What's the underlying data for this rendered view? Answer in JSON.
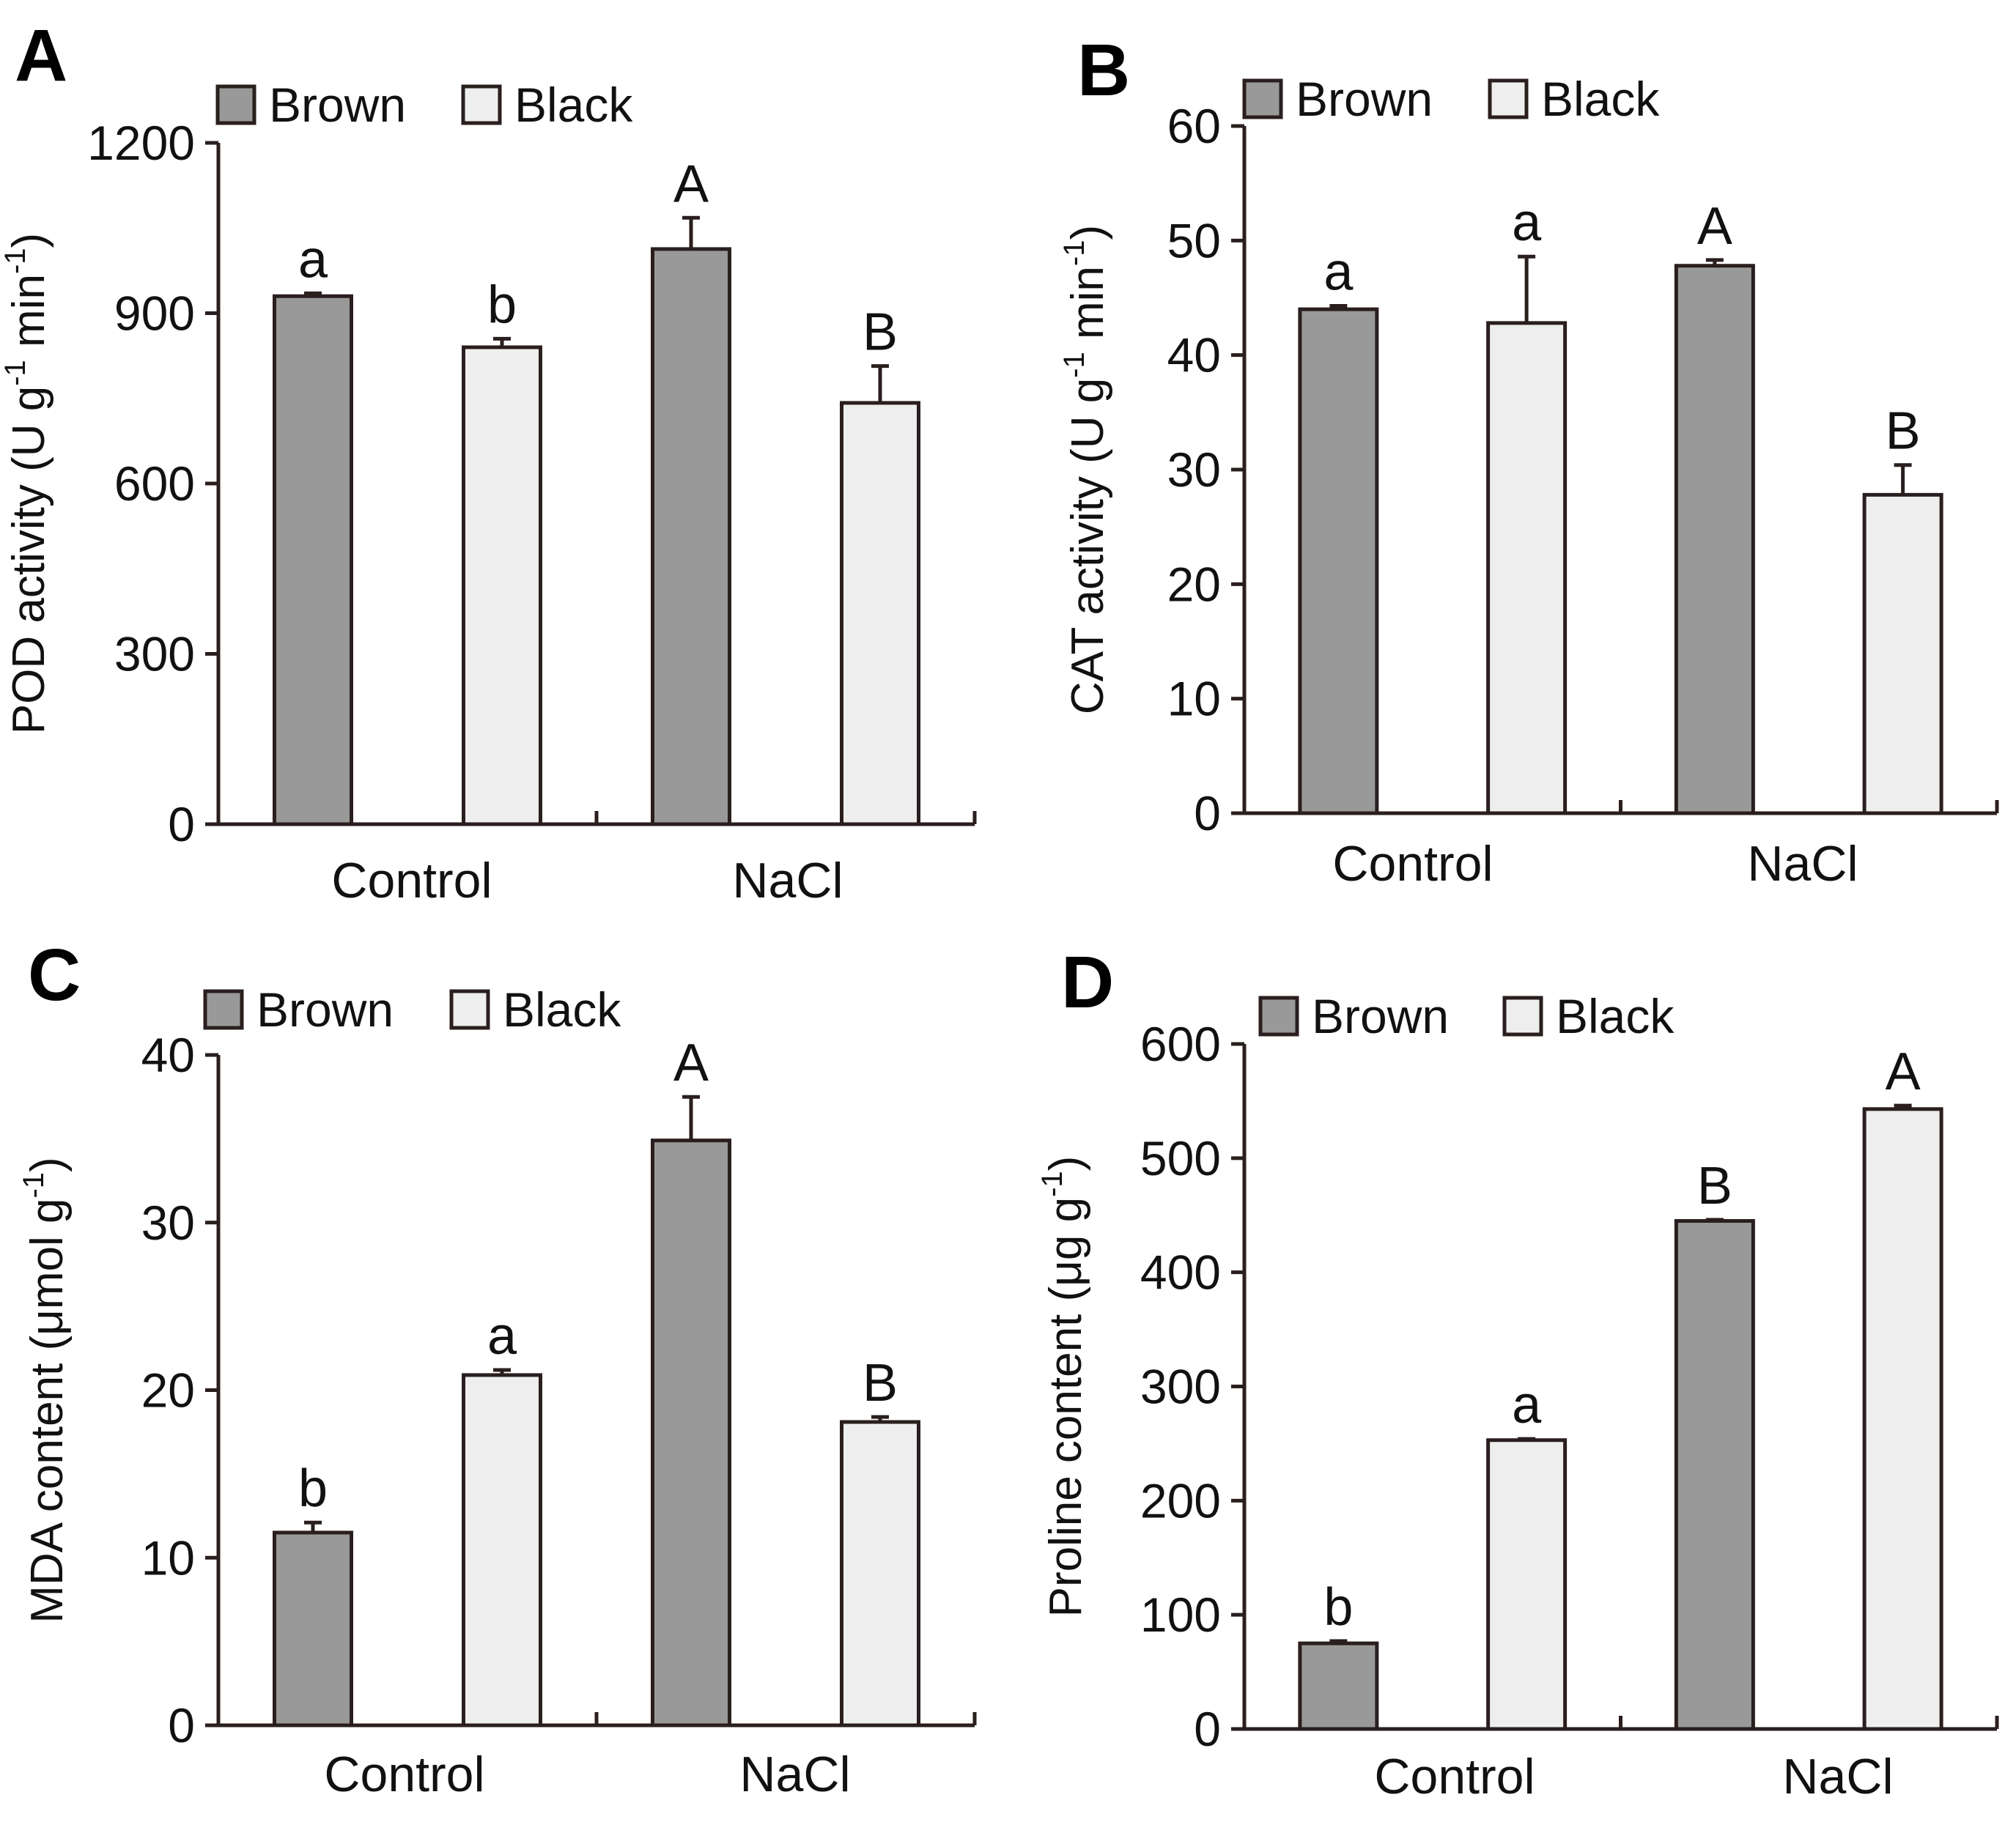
{
  "figure": {
    "legend_labels": [
      "Brown",
      "Black"
    ],
    "colors": {
      "brown_fill": "#999999",
      "black_fill": "#eeeeee",
      "stroke": "#2a1e1e"
    }
  },
  "chart_data": [
    {
      "panel": "A",
      "type": "bar",
      "categories": [
        "Control",
        "NaCl"
      ],
      "series": [
        {
          "name": "Brown",
          "values": [
            930,
            1013
          ],
          "errors": [
            5,
            55
          ],
          "letters": [
            "a",
            "A"
          ]
        },
        {
          "name": "Black",
          "values": [
            840,
            742
          ],
          "errors": [
            15,
            65
          ],
          "letters": [
            "b",
            "B"
          ]
        }
      ],
      "ylabel": "POD activity (U g-1 min-1)",
      "ylabel_parts": [
        "POD activity (U g",
        "-1",
        " min",
        "-1",
        ")"
      ],
      "ylim": [
        0,
        1200
      ],
      "yticks": [
        0,
        300,
        600,
        900,
        1200
      ],
      "legend": [
        "Brown",
        "Black"
      ]
    },
    {
      "panel": "B",
      "type": "bar",
      "categories": [
        "Control",
        "NaCl"
      ],
      "series": [
        {
          "name": "Brown",
          "values": [
            44,
            47.8
          ],
          "errors": [
            0.3,
            0.5
          ],
          "letters": [
            "a",
            "A"
          ]
        },
        {
          "name": "Black",
          "values": [
            42.8,
            27.8
          ],
          "errors": [
            5.8,
            2.6
          ],
          "letters": [
            "a",
            "B"
          ]
        }
      ],
      "ylabel": "CAT activity (U g-1 min-1)",
      "ylabel_parts": [
        "CAT activity (U g",
        "-1",
        " min",
        "-1",
        ")"
      ],
      "ylim": [
        0,
        60
      ],
      "yticks": [
        0,
        10,
        20,
        30,
        40,
        50,
        60
      ],
      "legend": [
        "Brown",
        "Black"
      ]
    },
    {
      "panel": "C",
      "type": "bar",
      "categories": [
        "Control",
        "NaCl"
      ],
      "series": [
        {
          "name": "Brown",
          "values": [
            11.5,
            34.9
          ],
          "errors": [
            0.6,
            2.6
          ],
          "letters": [
            "b",
            "A"
          ]
        },
        {
          "name": "Black",
          "values": [
            20.9,
            18.1
          ],
          "errors": [
            0.3,
            0.3
          ],
          "letters": [
            "a",
            "B"
          ]
        }
      ],
      "ylabel": "MDA content (μmol g-1)",
      "ylabel_parts": [
        "MDA content (μmol g",
        "-1",
        ")"
      ],
      "ylim": [
        0,
        40
      ],
      "yticks": [
        0,
        10,
        20,
        30,
        40
      ],
      "legend": [
        "Brown",
        "Black"
      ]
    },
    {
      "panel": "D",
      "type": "bar",
      "categories": [
        "Control",
        "NaCl"
      ],
      "series": [
        {
          "name": "Brown",
          "values": [
            75,
            445
          ],
          "errors": [
            2,
            1
          ],
          "letters": [
            "b",
            "B"
          ]
        },
        {
          "name": "Black",
          "values": [
            253,
            543
          ],
          "errors": [
            1,
            3
          ],
          "letters": [
            "a",
            "A"
          ]
        }
      ],
      "ylabel": "Proline content (μg g-1)",
      "ylabel_parts": [
        "Proline content (μg g",
        "-1",
        ")"
      ],
      "ylim": [
        0,
        600
      ],
      "yticks": [
        0,
        100,
        200,
        300,
        400,
        500,
        600
      ],
      "legend": [
        "Brown",
        "Black"
      ]
    }
  ]
}
